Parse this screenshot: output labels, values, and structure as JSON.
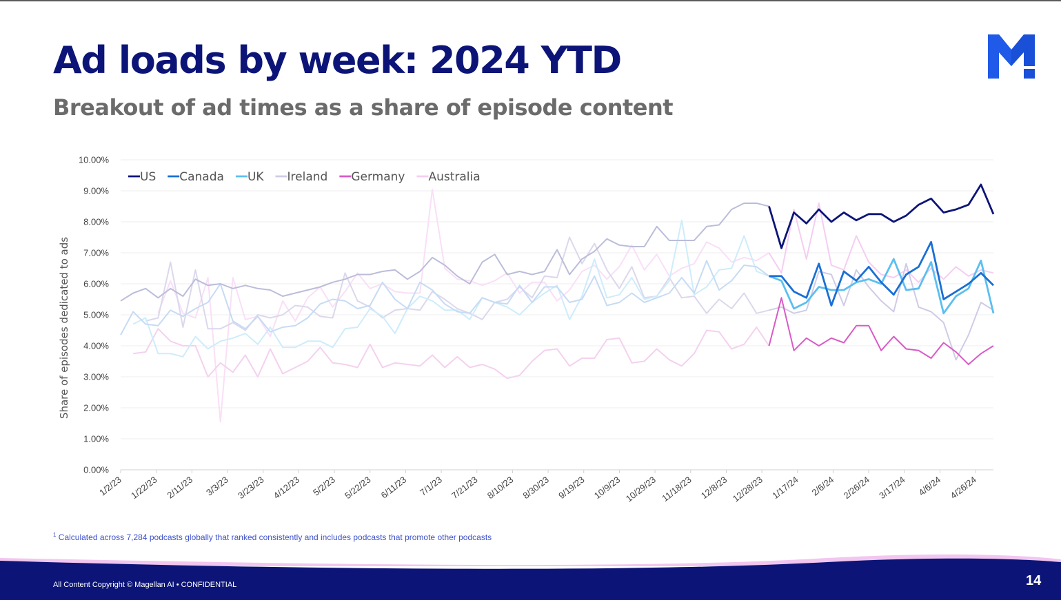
{
  "slide": {
    "title": "Ad loads by week: 2024 YTD",
    "subtitle": "Breakout of ad times as a share of episode content",
    "footnote_marker": "1",
    "footnote": " Calculated across 7,284 podcasts globally that ranked consistently and includes podcasts that promote other podcasts",
    "copyright": "All Content Copyright © Magellan AI • CONFIDENTIAL",
    "page_number": "14",
    "logo": "magellan-m-logo"
  },
  "colors": {
    "title": "#0c1577",
    "footer_band": "#0c1577",
    "footer_accent": "#f2c6f0"
  },
  "chart_data": {
    "type": "line",
    "ylabel": "Share of episodes dedicated to ads",
    "xlabel": "",
    "ylim": [
      0,
      10
    ],
    "y_ticks": [
      "0.00%",
      "1.00%",
      "2.00%",
      "3.00%",
      "4.00%",
      "5.00%",
      "6.00%",
      "7.00%",
      "8.00%",
      "9.00%",
      "10.00%"
    ],
    "x_tick_labels": [
      "1/2/23",
      "1/22/23",
      "2/11/23",
      "3/3/23",
      "3/23/23",
      "4/12/23",
      "5/2/23",
      "5/22/23",
      "6/11/23",
      "7/1/23",
      "7/21/23",
      "8/10/23",
      "8/30/23",
      "9/19/23",
      "10/9/23",
      "10/29/23",
      "11/18/23",
      "12/8/23",
      "12/28/23",
      "1/17/24",
      "2/6/24",
      "2/26/24",
      "3/17/24",
      "4/6/24",
      "4/26/24"
    ],
    "x_start": "2023-01-02",
    "x_step_days": 7,
    "highlight_from_index": 52,
    "grid": true,
    "legend_position": "top-left",
    "series": [
      {
        "name": "US",
        "color": "#0c1577",
        "values": [
          5.45,
          5.7,
          5.85,
          5.55,
          5.85,
          5.6,
          6.15,
          5.95,
          6,
          5.85,
          5.95,
          5.85,
          5.8,
          5.6,
          5.7,
          5.8,
          5.9,
          6.05,
          6.15,
          6.3,
          6.3,
          6.4,
          6.45,
          6.15,
          6.4,
          6.85,
          6.6,
          6.25,
          6,
          6.7,
          6.95,
          6.3,
          6.4,
          6.3,
          6.4,
          7.1,
          6.3,
          6.8,
          7.05,
          7.45,
          7.25,
          7.2,
          7.2,
          7.85,
          7.4,
          7.4,
          7.4,
          7.85,
          7.9,
          8.4,
          8.6,
          8.6,
          8.5,
          7.15,
          8.3,
          7.95,
          8.4,
          8,
          8.3,
          8.05,
          8.25,
          8.25,
          8,
          8.2,
          8.55,
          8.75,
          8.3,
          8.4,
          8.55,
          9.2,
          8.25
        ]
      },
      {
        "name": "Canada",
        "color": "#1a6fd4",
        "values": [
          4.35,
          5.1,
          4.7,
          4.65,
          5.15,
          4.95,
          5.2,
          5.4,
          6,
          4.8,
          4.55,
          4.95,
          4.45,
          4.6,
          4.65,
          4.9,
          5.35,
          5.5,
          5.45,
          5.2,
          5.3,
          6.05,
          5.5,
          5.2,
          6.05,
          5.8,
          5.35,
          5.1,
          5.05,
          5.55,
          5.4,
          5.35,
          5.95,
          5.4,
          5.9,
          5.9,
          5.4,
          5.5,
          6.25,
          5.3,
          5.4,
          5.7,
          5.4,
          5.55,
          5.7,
          6.2,
          5.7,
          6.75,
          5.8,
          6.1,
          6.6,
          6.55,
          6.25,
          6.25,
          5.75,
          5.55,
          6.65,
          5.3,
          6.4,
          6.1,
          6.55,
          6.05,
          5.65,
          6.3,
          6.55,
          7.35,
          5.5,
          5.75,
          6,
          6.35,
          5.95
        ]
      },
      {
        "name": "UK",
        "color": "#5bbff0",
        "values": [
          4.7,
          4.9,
          3.75,
          3.75,
          3.65,
          4.3,
          3.9,
          4.15,
          4.25,
          4.4,
          4.05,
          4.6,
          3.95,
          3.95,
          4.15,
          4.15,
          3.95,
          4.55,
          4.6,
          5.2,
          4.95,
          4.4,
          5.2,
          5.6,
          5.45,
          5.15,
          5.15,
          4.85,
          5.55,
          5.4,
          5.25,
          5,
          5.4,
          5.7,
          5.95,
          4.85,
          5.6,
          6.8,
          5.55,
          5.65,
          6.2,
          5.5,
          5.6,
          6.1,
          8.05,
          5.65,
          5.9,
          6.45,
          6.5,
          7.55,
          6.4,
          6.25,
          6.1,
          5.2,
          5.4,
          5.9,
          5.8,
          5.8,
          6.05,
          6.15,
          6,
          6.8,
          5.8,
          5.85,
          6.7,
          5.05,
          5.6,
          5.85,
          6.75,
          5.05
        ]
      },
      {
        "name": "Ireland",
        "color": "#cfcbe6",
        "values": [
          4.8,
          4.9,
          6.7,
          4.6,
          6.45,
          4.55,
          4.55,
          4.75,
          4.5,
          5,
          4.9,
          5,
          5.3,
          5.25,
          4.95,
          4.9,
          6.35,
          5.45,
          5.25,
          4.9,
          5.15,
          5.2,
          5.15,
          5.75,
          5.5,
          5.2,
          5.05,
          4.85,
          5.4,
          5.5,
          5.9,
          5.55,
          6.25,
          6.2,
          7.5,
          6.65,
          7.3,
          6.45,
          5.85,
          6.55,
          5.55,
          5.6,
          6.2,
          5.55,
          5.6,
          5.05,
          5.5,
          5.2,
          5.7,
          5.05,
          5.15,
          5.25,
          5.05,
          5.15,
          6.4,
          6.3,
          5.3,
          6.45,
          5.9,
          5.45,
          5.1,
          6.65,
          5.25,
          5.1,
          4.75,
          3.55,
          4.35,
          5.4,
          5.15
        ]
      },
      {
        "name": "Germany",
        "color": "#d85ac7",
        "values": [
          3.75,
          3.8,
          4.55,
          4.15,
          4,
          4,
          3,
          3.45,
          3.15,
          3.7,
          3,
          3.9,
          3.1,
          3.3,
          3.5,
          3.95,
          3.45,
          3.4,
          3.3,
          4.05,
          3.3,
          3.45,
          3.4,
          3.35,
          3.7,
          3.3,
          3.65,
          3.3,
          3.4,
          3.25,
          2.95,
          3.05,
          3.5,
          3.85,
          3.9,
          3.35,
          3.6,
          3.6,
          4.2,
          4.25,
          3.45,
          3.5,
          3.9,
          3.55,
          3.35,
          3.75,
          4.5,
          4.45,
          3.9,
          4.05,
          4.6,
          4,
          5.55,
          3.85,
          4.25,
          4,
          4.25,
          4.1,
          4.65,
          4.65,
          3.85,
          4.3,
          3.9,
          3.85,
          3.6,
          4.1,
          3.8,
          3.4,
          3.75,
          4
        ]
      },
      {
        "name": "Australia",
        "color": "#f5cdf2",
        "values": [
          5.05,
          6.1,
          5.05,
          4.9,
          6.2,
          1.55,
          6.2,
          4.85,
          4.95,
          4.3,
          5.45,
          4.8,
          5.55,
          5.9,
          5.25,
          5.75,
          6.35,
          5.85,
          6,
          5.75,
          5.7,
          5.7,
          9.05,
          6.5,
          6.15,
          6.1,
          5.95,
          6.1,
          6.35,
          5.7,
          6.05,
          6.05,
          5.45,
          5.8,
          6.4,
          6.6,
          6.15,
          6.55,
          7.25,
          6.45,
          6.95,
          6.25,
          6.5,
          6.65,
          7.35,
          7.15,
          6.7,
          6.85,
          6.75,
          7,
          6.35,
          8.4,
          6.8,
          8.6,
          6.6,
          6.45,
          7.55,
          6.7,
          6.3,
          6.2,
          6.45,
          6.05,
          6.5,
          6.15,
          6.55,
          6.25,
          6.45,
          6.35
        ]
      }
    ]
  }
}
